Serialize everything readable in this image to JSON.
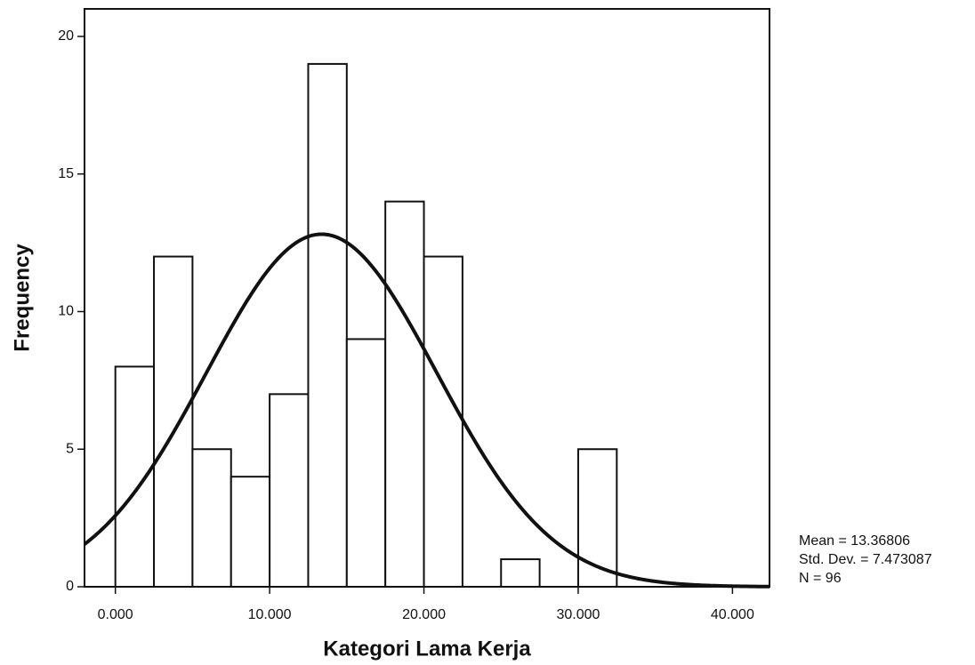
{
  "chart_data": {
    "type": "histogram",
    "x_label": "Kategori Lama Kerja",
    "y_label": "Frequency",
    "bins": [
      0,
      2.5,
      5,
      7.5,
      10,
      12.5,
      15,
      17.5,
      20,
      22.5,
      25,
      27.5,
      30,
      32.5
    ],
    "values": [
      8,
      12,
      5,
      4,
      7,
      19,
      9,
      14,
      12,
      0,
      1,
      0,
      5
    ],
    "color": "#ffffff",
    "edge_color": "#111111",
    "curve_color": "#111111",
    "xlim": [
      -2,
      42.4
    ],
    "ylim": [
      0,
      21
    ],
    "xticks": [
      {
        "value": 0,
        "label": "0.000"
      },
      {
        "value": 10,
        "label": "10.000"
      },
      {
        "value": 20,
        "label": "20.000"
      },
      {
        "value": 30,
        "label": "30.000"
      },
      {
        "value": 40,
        "label": "40.000"
      }
    ],
    "yticks": [
      0,
      5,
      10,
      15,
      20
    ],
    "grid": false,
    "stats": [
      {
        "value": 13.36806,
        "label": "Mean = 13.36806"
      },
      {
        "value": 7.473087,
        "label": "Std. Dev. = 7.473087"
      },
      {
        "value": 96,
        "label": "N = 96"
      }
    ]
  }
}
